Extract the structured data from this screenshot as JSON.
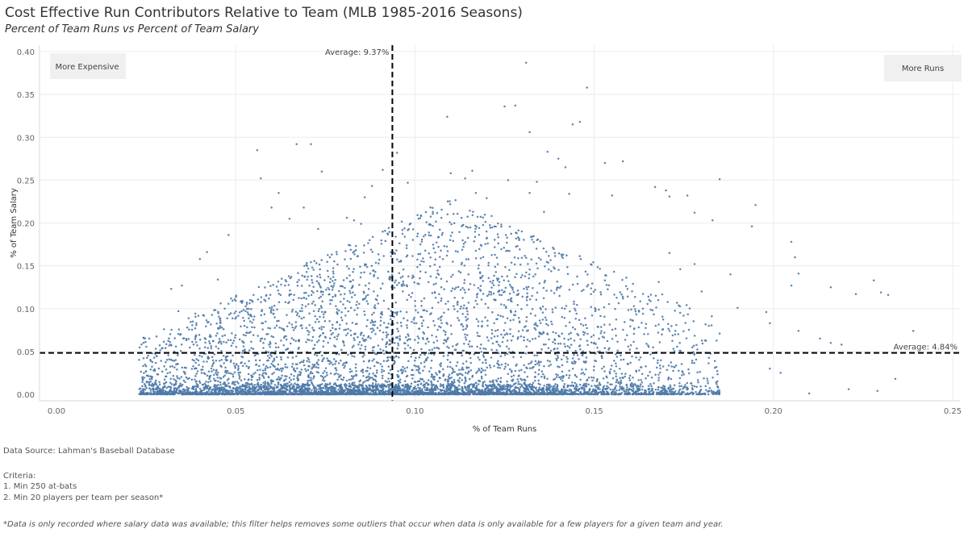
{
  "header": {
    "title": "Cost Effective Run Contributors Relative to Team (MLB 1985-2016 Seasons)",
    "subtitle": "Percent of Team Runs vs Percent of Team Salary"
  },
  "footer": {
    "source": "Data Source: Lahman's Baseball Database",
    "criteria_heading": "Criteria:",
    "criteria_1": "1. Min 250 at-bats",
    "criteria_2": "2. Min 20 players per team per season*",
    "note": "*Data is only recorded where salary data was available; this filter helps removes some outliers that occur when data is only available for a few players for a given team and year."
  },
  "colors": {
    "point": "#4e79a7",
    "grid": "#ececec",
    "reference": "#000000"
  },
  "chart_data": {
    "type": "scatter",
    "title": "Cost Effective Run Contributors Relative to Team (MLB 1985-2016 Seasons)",
    "xlabel": "% of Team Runs",
    "ylabel": "% of Team Salary",
    "xlim": [
      0.0,
      0.25
    ],
    "ylim": [
      0.0,
      0.4
    ],
    "x_ticks": [
      "0.00",
      "0.05",
      "0.10",
      "0.15",
      "0.20",
      "0.25"
    ],
    "y_ticks": [
      "0.00",
      "0.05",
      "0.10",
      "0.15",
      "0.20",
      "0.25",
      "0.30",
      "0.35",
      "0.40"
    ],
    "grid": true,
    "reference_lines": [
      {
        "axis": "x",
        "value": 0.0937,
        "label": "Average: 9.37%"
      },
      {
        "axis": "y",
        "value": 0.0484,
        "label": "Average: 4.84%"
      }
    ],
    "annotations": [
      {
        "text": "More Expensive",
        "position": "top-left"
      },
      {
        "text": "More Runs",
        "position": "top-right"
      }
    ],
    "cluster": {
      "n_points": 6500,
      "x_range": [
        0.023,
        0.185
      ],
      "x_mean": 0.0937,
      "y_mean": 0.0484
    },
    "series": [
      {
        "name": "Player seasons (notable points)",
        "points": [
          [
            0.131,
            0.387
          ],
          [
            0.148,
            0.358
          ],
          [
            0.146,
            0.318
          ],
          [
            0.144,
            0.315
          ],
          [
            0.125,
            0.336
          ],
          [
            0.128,
            0.337
          ],
          [
            0.109,
            0.324
          ],
          [
            0.132,
            0.306
          ],
          [
            0.137,
            0.283
          ],
          [
            0.14,
            0.275
          ],
          [
            0.142,
            0.265
          ],
          [
            0.153,
            0.27
          ],
          [
            0.158,
            0.272
          ],
          [
            0.116,
            0.261
          ],
          [
            0.11,
            0.258
          ],
          [
            0.114,
            0.252
          ],
          [
            0.126,
            0.25
          ],
          [
            0.134,
            0.248
          ],
          [
            0.155,
            0.232
          ],
          [
            0.132,
            0.235
          ],
          [
            0.056,
            0.285
          ],
          [
            0.067,
            0.292
          ],
          [
            0.071,
            0.292
          ],
          [
            0.074,
            0.26
          ],
          [
            0.057,
            0.252
          ],
          [
            0.062,
            0.235
          ],
          [
            0.091,
            0.262
          ],
          [
            0.088,
            0.243
          ],
          [
            0.086,
            0.23
          ],
          [
            0.095,
            0.282
          ],
          [
            0.098,
            0.247
          ],
          [
            0.185,
            0.251
          ],
          [
            0.195,
            0.221
          ],
          [
            0.194,
            0.196
          ],
          [
            0.167,
            0.242
          ],
          [
            0.17,
            0.238
          ],
          [
            0.176,
            0.232
          ],
          [
            0.171,
            0.231
          ],
          [
            0.183,
            0.203
          ],
          [
            0.178,
            0.212
          ],
          [
            0.205,
            0.178
          ],
          [
            0.206,
            0.16
          ],
          [
            0.205,
            0.127
          ],
          [
            0.207,
            0.141
          ],
          [
            0.216,
            0.125
          ],
          [
            0.223,
            0.117
          ],
          [
            0.228,
            0.133
          ],
          [
            0.23,
            0.119
          ],
          [
            0.239,
            0.074
          ],
          [
            0.232,
            0.116
          ],
          [
            0.198,
            0.096
          ],
          [
            0.199,
            0.083
          ],
          [
            0.21,
            0.001
          ],
          [
            0.221,
            0.006
          ],
          [
            0.229,
            0.004
          ],
          [
            0.234,
            0.018
          ],
          [
            0.202,
            0.025
          ],
          [
            0.199,
            0.03
          ],
          [
            0.207,
            0.074
          ],
          [
            0.213,
            0.065
          ],
          [
            0.216,
            0.06
          ],
          [
            0.219,
            0.058
          ],
          [
            0.19,
            0.101
          ],
          [
            0.188,
            0.14
          ],
          [
            0.18,
            0.12
          ],
          [
            0.182,
            0.08
          ],
          [
            0.185,
            0.071
          ],
          [
            0.171,
            0.165
          ],
          [
            0.168,
            0.131
          ],
          [
            0.178,
            0.152
          ],
          [
            0.174,
            0.146
          ],
          [
            0.042,
            0.166
          ],
          [
            0.04,
            0.158
          ],
          [
            0.035,
            0.127
          ],
          [
            0.045,
            0.134
          ],
          [
            0.048,
            0.186
          ],
          [
            0.032,
            0.123
          ],
          [
            0.03,
            0.076
          ],
          [
            0.034,
            0.097
          ],
          [
            0.038,
            0.085
          ],
          [
            0.06,
            0.218
          ],
          [
            0.065,
            0.205
          ],
          [
            0.069,
            0.218
          ],
          [
            0.073,
            0.193
          ],
          [
            0.081,
            0.206
          ],
          [
            0.083,
            0.203
          ],
          [
            0.085,
            0.199
          ],
          [
            0.105,
            0.213
          ],
          [
            0.117,
            0.235
          ],
          [
            0.12,
            0.229
          ],
          [
            0.136,
            0.213
          ],
          [
            0.143,
            0.234
          ]
        ]
      }
    ]
  }
}
